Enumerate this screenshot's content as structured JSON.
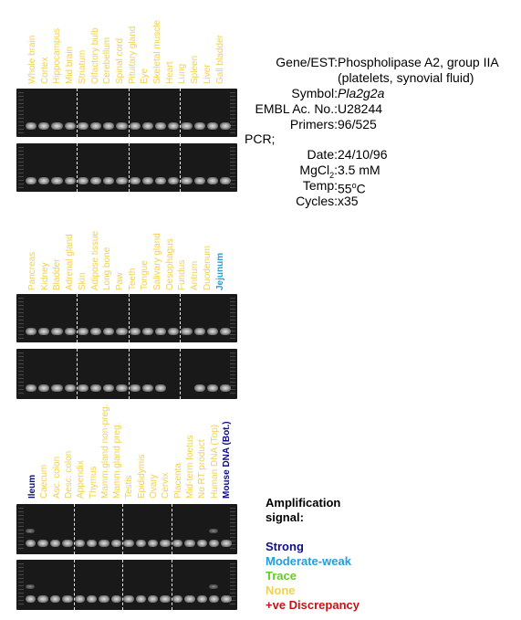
{
  "panels": [
    {
      "labels": [
        "Whole brain",
        "Cortex",
        "Hippocampus",
        "Mid brain",
        "Striatum",
        "Olfactory bulb",
        "Cerebellum",
        "Spinal cord",
        "Pituitary gland",
        "Eye",
        "Skeletal muscle",
        "Heart",
        "Lung",
        "Spleen",
        "Liver",
        "Gall bladder"
      ],
      "label_colors": [
        "#f0d050",
        "#f0d050",
        "#f0d050",
        "#f0d050",
        "#f0d050",
        "#f0d050",
        "#f0d050",
        "#f0d050",
        "#f0d050",
        "#f0d050",
        "#f0d050",
        "#f0d050",
        "#f0d050",
        "#f0d050",
        "#f0d050",
        "#f0d050"
      ]
    },
    {
      "labels": [
        "Pancreas",
        "Kidney",
        "Bladder",
        "Adrenal gland",
        "Skin",
        "Adipose tissue",
        "Long bone",
        "Paw",
        "Teeth",
        "Tongue",
        "Salivary gland",
        "Oesophagus",
        "Fundus",
        "Antrum",
        "Duodenum",
        "Jejunum"
      ],
      "label_colors": [
        "#f0d050",
        "#f0d050",
        "#f0d050",
        "#f0d050",
        "#f0d050",
        "#f0d050",
        "#f0d050",
        "#f0d050",
        "#f0d050",
        "#f0d050",
        "#f0d050",
        "#f0d050",
        "#f0d050",
        "#f0d050",
        "#f0d050",
        "#1e9fe0"
      ]
    },
    {
      "labels": [
        "Ileum",
        "Caecum",
        "Asc. colon",
        "Desc. colon",
        "Appendix",
        "Thymus",
        "Mamm.gland non-preg.",
        "Mamm.gland preg.",
        "Testis",
        "Epididymis",
        "Ovary",
        "Cervix",
        "Placenta",
        "Mid-term foetus",
        "No RT product",
        "Human DNA (Top)",
        "Mouse DNA (Bot.)"
      ],
      "label_colors": [
        "#101080",
        "#f0d050",
        "#f0d050",
        "#f0d050",
        "#f0d050",
        "#f0d050",
        "#f0d050",
        "#f0d050",
        "#f0d050",
        "#f0d050",
        "#f0d050",
        "#f0d050",
        "#f0d050",
        "#f0d050",
        "#f0d050",
        "#f0d050",
        "#101080"
      ]
    }
  ],
  "info": {
    "gene_label": "Gene/EST:",
    "gene_value_line1": "Phospholipase A2, group IIA",
    "gene_value_line2": "(platelets, synovial fluid)",
    "symbol_label": "Symbol:",
    "symbol_value": "Pla2g2a",
    "embl_label": "EMBL Ac. No.:",
    "embl_value": "U28244",
    "primers_label": "Primers:",
    "primers_value": "96/525",
    "pcr_label": "PCR;",
    "date_label": "Date:",
    "date_value": "24/10/96",
    "mgcl2_label": "MgCl",
    "mgcl2_sub": "2",
    "mgcl2_colon": ":",
    "mgcl2_value": "3.5 mM",
    "temp_label": "Temp:",
    "temp_value": "55",
    "temp_sup": "o",
    "temp_unit": "C",
    "cycles_label": "Cycles:",
    "cycles_value": "x35"
  },
  "legend": {
    "title_line1": "Amplification",
    "title_line2": "signal:",
    "items": [
      {
        "label": "Strong",
        "color": "#101080"
      },
      {
        "label": "Moderate-weak",
        "color": "#1e9fe0"
      },
      {
        "label": "Trace",
        "color": "#66cc22"
      },
      {
        "label": "None",
        "color": "#f0d050"
      },
      {
        "label": "+ve Discrepancy",
        "color": "#cc1010"
      }
    ]
  }
}
